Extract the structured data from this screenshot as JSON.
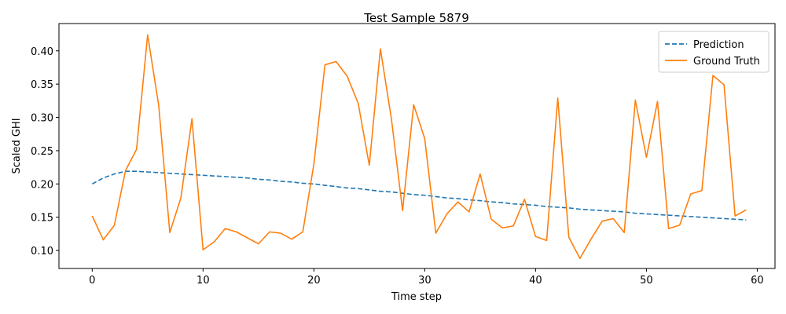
{
  "chart_data": {
    "type": "line",
    "title": "Test Sample 5879",
    "xlabel": "Time step",
    "ylabel": "Scaled GHI",
    "xlim": [
      -3,
      61.6
    ],
    "ylim": [
      0.073,
      0.441
    ],
    "xticks": [
      0,
      10,
      20,
      30,
      40,
      50,
      60
    ],
    "yticks": [
      0.1,
      0.15,
      0.2,
      0.25,
      0.3,
      0.35,
      0.4
    ],
    "ytick_labels": [
      "0.10",
      "0.15",
      "0.20",
      "0.25",
      "0.30",
      "0.35",
      "0.40"
    ],
    "grid": false,
    "legend_position": "top-right",
    "series": [
      {
        "name": "Prediction",
        "color": "#1f77b4",
        "style": "dashed",
        "x": [
          0,
          1,
          2,
          3,
          4,
          5,
          6,
          7,
          8,
          9,
          10,
          11,
          12,
          13,
          14,
          15,
          16,
          17,
          18,
          19,
          20,
          21,
          22,
          23,
          24,
          25,
          26,
          27,
          28,
          29,
          30,
          31,
          32,
          33,
          34,
          35,
          36,
          37,
          38,
          39,
          40,
          41,
          42,
          43,
          44,
          45,
          46,
          47,
          48,
          49,
          50,
          51,
          52,
          53,
          54,
          55,
          56,
          57,
          58,
          59
        ],
        "values": [
          0.2,
          0.209,
          0.215,
          0.219,
          0.219,
          0.218,
          0.217,
          0.216,
          0.215,
          0.214,
          0.213,
          0.212,
          0.211,
          0.21,
          0.209,
          0.207,
          0.206,
          0.204,
          0.203,
          0.201,
          0.2,
          0.198,
          0.196,
          0.194,
          0.193,
          0.191,
          0.189,
          0.188,
          0.186,
          0.184,
          0.183,
          0.181,
          0.179,
          0.178,
          0.176,
          0.175,
          0.173,
          0.172,
          0.17,
          0.169,
          0.168,
          0.166,
          0.165,
          0.164,
          0.162,
          0.161,
          0.16,
          0.159,
          0.158,
          0.156,
          0.155,
          0.154,
          0.153,
          0.152,
          0.151,
          0.15,
          0.149,
          0.148,
          0.147,
          0.146
        ]
      },
      {
        "name": "Ground Truth",
        "color": "#ff7f0e",
        "style": "solid",
        "x": [
          0,
          1,
          2,
          3,
          4,
          5,
          6,
          7,
          8,
          9,
          10,
          11,
          12,
          13,
          14,
          15,
          16,
          17,
          18,
          19,
          20,
          21,
          22,
          23,
          24,
          25,
          26,
          27,
          28,
          29,
          30,
          31,
          32,
          33,
          34,
          35,
          36,
          37,
          38,
          39,
          40,
          41,
          42,
          43,
          44,
          45,
          46,
          47,
          48,
          49,
          50,
          51,
          52,
          53,
          54,
          55,
          56,
          57,
          58,
          59
        ],
        "values": [
          0.152,
          0.116,
          0.138,
          0.22,
          0.252,
          0.424,
          0.318,
          0.127,
          0.179,
          0.298,
          0.101,
          0.113,
          0.133,
          0.128,
          0.119,
          0.11,
          0.128,
          0.126,
          0.117,
          0.128,
          0.23,
          0.379,
          0.384,
          0.362,
          0.321,
          0.228,
          0.403,
          0.297,
          0.16,
          0.319,
          0.268,
          0.126,
          0.155,
          0.173,
          0.158,
          0.215,
          0.147,
          0.134,
          0.137,
          0.177,
          0.121,
          0.115,
          0.329,
          0.12,
          0.088,
          0.117,
          0.144,
          0.148,
          0.127,
          0.326,
          0.24,
          0.324,
          0.133,
          0.138,
          0.185,
          0.19,
          0.363,
          0.349,
          0.152,
          0.161
        ]
      }
    ]
  }
}
